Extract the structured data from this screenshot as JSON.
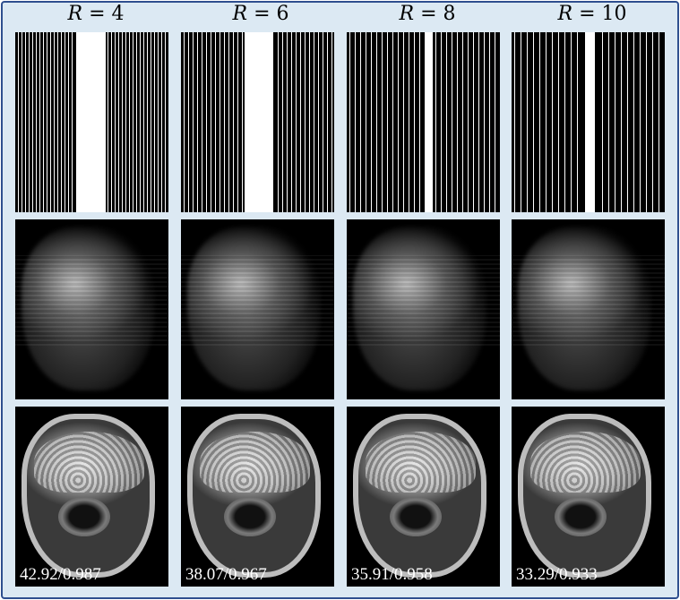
{
  "columns": [
    {
      "title_var": "R",
      "title_op": " = ",
      "title_val": "4",
      "metric": "42.92/0.987",
      "band_left": 68,
      "band_right": 101
    },
    {
      "title_var": "R",
      "title_op": " = ",
      "title_val": "6",
      "metric": "38.07/0.967",
      "band_left": 71,
      "band_right": 103
    },
    {
      "title_var": "R",
      "title_op": " = ",
      "title_val": "8",
      "metric": "35.91/0.958",
      "band_left": 87,
      "band_right": 96
    },
    {
      "title_var": "R",
      "title_op": " = ",
      "title_val": "10",
      "metric": "33.29/0.933",
      "band_left": 82,
      "band_right": 93
    }
  ],
  "colors": {
    "frame_bg": "#dce9f3",
    "frame_border": "#2f4f8f"
  }
}
